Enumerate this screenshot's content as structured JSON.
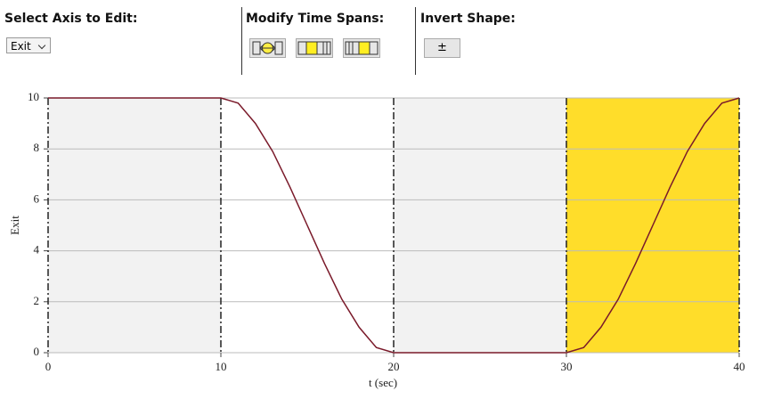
{
  "toolbar": {
    "select_axis_label": "Select Axis to Edit:",
    "axis_option": "Exit",
    "modify_label": "Modify Time Spans:",
    "invert_label": "Invert Shape:",
    "invert_button": "±"
  },
  "chart_data": {
    "type": "line",
    "xlabel": "t (sec)",
    "ylabel": "Exit",
    "x": [
      0,
      10,
      11,
      12,
      13,
      14,
      15,
      16,
      17,
      18,
      19,
      20,
      30,
      31,
      32,
      33,
      34,
      35,
      36,
      37,
      38,
      39,
      40
    ],
    "values": [
      10,
      10,
      9.8,
      9.0,
      7.9,
      6.5,
      5,
      3.5,
      2.1,
      1.0,
      0.2,
      0,
      0,
      0.2,
      1.0,
      2.1,
      3.5,
      5,
      6.5,
      7.9,
      9.0,
      9.8,
      10
    ],
    "color": "#7a1a2a",
    "spans": [
      {
        "start": 0,
        "end": 10,
        "color": "#f2f2f2"
      },
      {
        "start": 10,
        "end": 20,
        "color": "#ffffff"
      },
      {
        "start": 20,
        "end": 30,
        "color": "#f2f2f2"
      },
      {
        "start": 30,
        "end": 40,
        "color": "#ffdd2a"
      }
    ],
    "xlim": [
      0,
      40
    ],
    "ylim": [
      0,
      10
    ],
    "xticks": [
      0,
      10,
      20,
      30,
      40
    ],
    "yticks": [
      0,
      2,
      4,
      6,
      8,
      10
    ],
    "grid": true
  }
}
